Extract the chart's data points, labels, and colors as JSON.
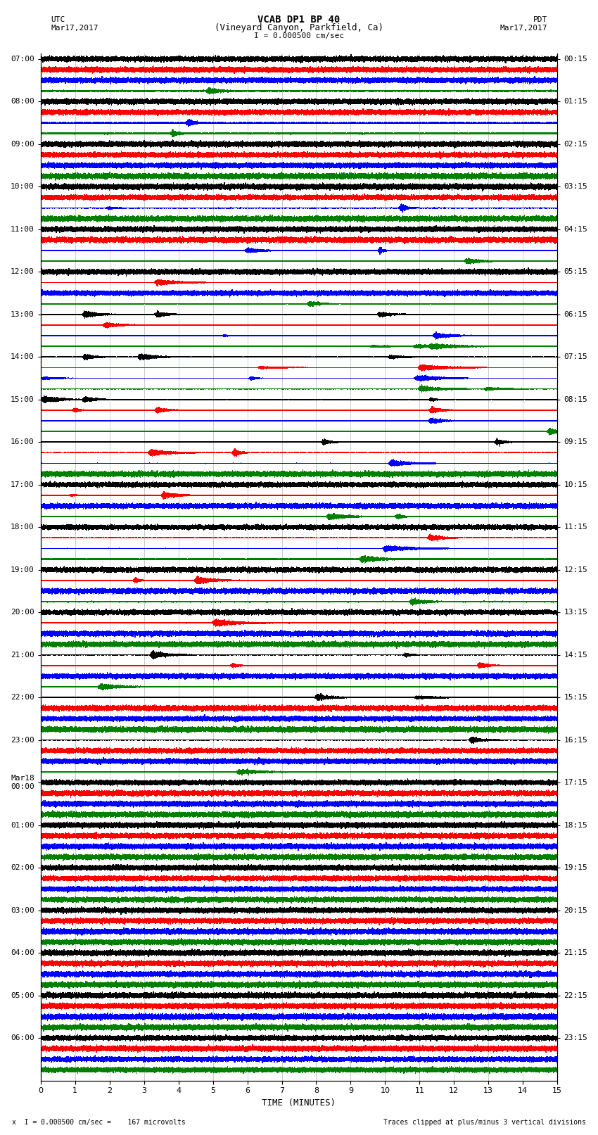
{
  "title_line1": "VCAB DP1 BP 40",
  "title_line2": "(Vineyard Canyon, Parkfield, Ca)",
  "scale_text": "I = 0.000500 cm/sec",
  "left_label": "UTC",
  "left_date": "Mar17,2017",
  "right_label": "PDT",
  "right_date": "Mar17,2017",
  "bottom_note1": "x  I = 0.000500 cm/sec =    167 microvolts",
  "bottom_note2": "Traces clipped at plus/minus 3 vertical divisions",
  "xlabel": "TIME (MINUTES)",
  "utc_times": [
    "07:00",
    "08:00",
    "09:00",
    "10:00",
    "11:00",
    "12:00",
    "13:00",
    "14:00",
    "15:00",
    "16:00",
    "17:00",
    "18:00",
    "19:00",
    "20:00",
    "21:00",
    "22:00",
    "23:00",
    "Mar18\n00:00",
    "01:00",
    "02:00",
    "03:00",
    "04:00",
    "05:00",
    "06:00"
  ],
  "pdt_times": [
    "00:15",
    "01:15",
    "02:15",
    "03:15",
    "04:15",
    "05:15",
    "06:15",
    "07:15",
    "08:15",
    "09:15",
    "10:15",
    "11:15",
    "12:15",
    "13:15",
    "14:15",
    "15:15",
    "16:15",
    "17:15",
    "18:15",
    "19:15",
    "20:15",
    "21:15",
    "22:15",
    "23:15"
  ],
  "trace_colors": [
    "black",
    "red",
    "blue",
    "green"
  ],
  "n_hours": 24,
  "n_traces_per_hour": 4,
  "minutes": 15,
  "bg_color": "white",
  "grid_color": "#999999",
  "title_fontsize": 10,
  "label_fontsize": 8,
  "tick_fontsize": 8
}
